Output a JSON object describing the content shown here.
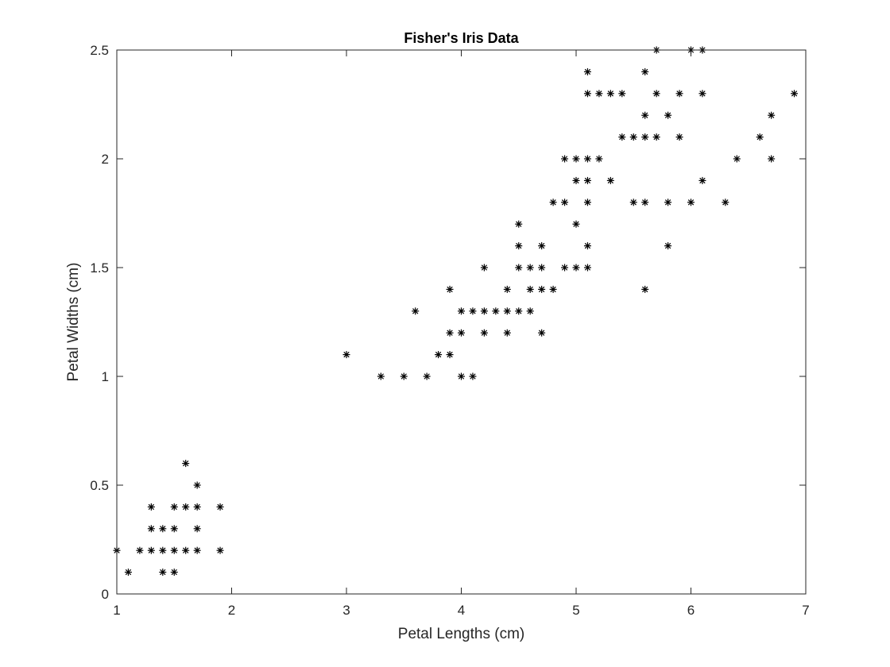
{
  "chart_data": {
    "type": "scatter",
    "title": "Fisher's Iris Data",
    "xlabel": "Petal Lengths (cm)",
    "ylabel": "Petal Widths (cm)",
    "xlim": [
      1,
      7
    ],
    "ylim": [
      0,
      2.5
    ],
    "xticks": [
      "1",
      "2",
      "3",
      "4",
      "5",
      "6",
      "7"
    ],
    "yticks": [
      "0",
      "0.5",
      "1",
      "1.5",
      "2",
      "2.5"
    ],
    "grid": false,
    "legend": false,
    "marker": "*",
    "marker_color": "#000000",
    "series": [
      {
        "points": [
          [
            1.0,
            0.2
          ],
          [
            1.1,
            0.1
          ],
          [
            1.2,
            0.2
          ],
          [
            1.3,
            0.2
          ],
          [
            1.3,
            0.3
          ],
          [
            1.3,
            0.4
          ],
          [
            1.4,
            0.1
          ],
          [
            1.4,
            0.2
          ],
          [
            1.4,
            0.3
          ],
          [
            1.5,
            0.1
          ],
          [
            1.5,
            0.2
          ],
          [
            1.5,
            0.3
          ],
          [
            1.5,
            0.4
          ],
          [
            1.6,
            0.2
          ],
          [
            1.6,
            0.4
          ],
          [
            1.6,
            0.6
          ],
          [
            1.7,
            0.2
          ],
          [
            1.7,
            0.3
          ],
          [
            1.7,
            0.4
          ],
          [
            1.7,
            0.5
          ],
          [
            1.9,
            0.2
          ],
          [
            1.9,
            0.4
          ],
          [
            3.0,
            1.1
          ],
          [
            3.3,
            1.0
          ],
          [
            3.5,
            1.0
          ],
          [
            3.6,
            1.3
          ],
          [
            3.7,
            1.0
          ],
          [
            3.8,
            1.1
          ],
          [
            3.9,
            1.1
          ],
          [
            3.9,
            1.2
          ],
          [
            3.9,
            1.4
          ],
          [
            4.0,
            1.0
          ],
          [
            4.0,
            1.2
          ],
          [
            4.0,
            1.3
          ],
          [
            4.1,
            1.0
          ],
          [
            4.1,
            1.3
          ],
          [
            4.2,
            1.2
          ],
          [
            4.2,
            1.3
          ],
          [
            4.2,
            1.5
          ],
          [
            4.3,
            1.3
          ],
          [
            4.4,
            1.2
          ],
          [
            4.4,
            1.3
          ],
          [
            4.4,
            1.4
          ],
          [
            4.5,
            1.3
          ],
          [
            4.5,
            1.5
          ],
          [
            4.5,
            1.6
          ],
          [
            4.5,
            1.7
          ],
          [
            4.6,
            1.3
          ],
          [
            4.6,
            1.4
          ],
          [
            4.6,
            1.5
          ],
          [
            4.7,
            1.2
          ],
          [
            4.7,
            1.4
          ],
          [
            4.7,
            1.5
          ],
          [
            4.7,
            1.6
          ],
          [
            4.8,
            1.4
          ],
          [
            4.8,
            1.8
          ],
          [
            4.9,
            1.5
          ],
          [
            4.9,
            1.8
          ],
          [
            4.9,
            2.0
          ],
          [
            5.0,
            1.5
          ],
          [
            5.0,
            1.7
          ],
          [
            5.0,
            1.9
          ],
          [
            5.0,
            2.0
          ],
          [
            5.1,
            1.5
          ],
          [
            5.1,
            1.6
          ],
          [
            5.1,
            1.8
          ],
          [
            5.1,
            1.9
          ],
          [
            5.1,
            2.0
          ],
          [
            5.1,
            2.3
          ],
          [
            5.1,
            2.4
          ],
          [
            5.2,
            2.0
          ],
          [
            5.2,
            2.3
          ],
          [
            5.3,
            1.9
          ],
          [
            5.3,
            2.3
          ],
          [
            5.4,
            2.1
          ],
          [
            5.4,
            2.3
          ],
          [
            5.5,
            1.8
          ],
          [
            5.5,
            2.1
          ],
          [
            5.6,
            1.4
          ],
          [
            5.6,
            1.8
          ],
          [
            5.6,
            2.1
          ],
          [
            5.6,
            2.2
          ],
          [
            5.6,
            2.4
          ],
          [
            5.7,
            2.1
          ],
          [
            5.7,
            2.3
          ],
          [
            5.7,
            2.5
          ],
          [
            5.8,
            1.6
          ],
          [
            5.8,
            1.8
          ],
          [
            5.8,
            2.2
          ],
          [
            5.9,
            2.1
          ],
          [
            5.9,
            2.3
          ],
          [
            6.0,
            1.8
          ],
          [
            6.0,
            2.5
          ],
          [
            6.1,
            1.9
          ],
          [
            6.1,
            2.3
          ],
          [
            6.1,
            2.5
          ],
          [
            6.3,
            1.8
          ],
          [
            6.4,
            2.0
          ],
          [
            6.6,
            2.1
          ],
          [
            6.7,
            2.0
          ],
          [
            6.7,
            2.2
          ],
          [
            6.9,
            2.3
          ]
        ]
      }
    ]
  }
}
